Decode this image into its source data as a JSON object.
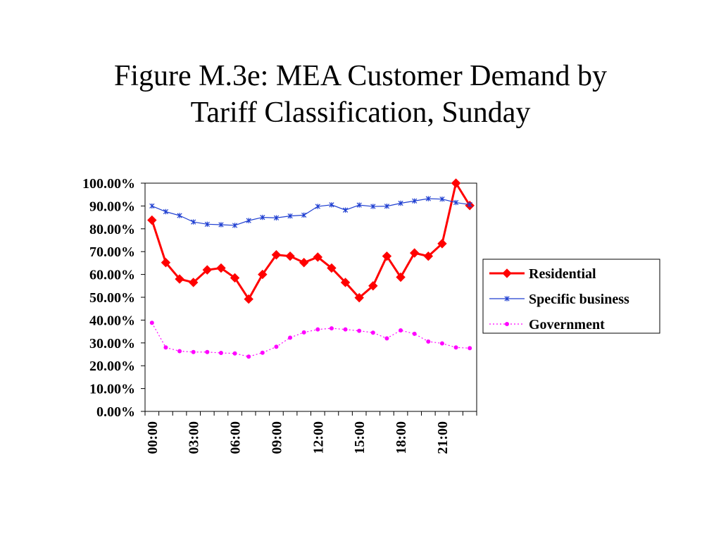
{
  "title_lines": [
    "Figure M.3e: MEA Customer Demand by",
    "Tariff Classification, Sunday"
  ],
  "chart_data": {
    "type": "line",
    "title": "Figure M.3e: MEA Customer Demand by Tariff Classification, Sunday",
    "xlabel": "",
    "ylabel": "",
    "x": [
      "00:00",
      "01:00",
      "02:00",
      "03:00",
      "04:00",
      "05:00",
      "06:00",
      "07:00",
      "08:00",
      "09:00",
      "10:00",
      "11:00",
      "12:00",
      "13:00",
      "14:00",
      "15:00",
      "16:00",
      "17:00",
      "18:00",
      "19:00",
      "20:00",
      "21:00",
      "22:00",
      "23:00"
    ],
    "x_tick_labels": [
      "00:00",
      "03:00",
      "06:00",
      "09:00",
      "12:00",
      "15:00",
      "18:00",
      "21:00"
    ],
    "y_tick_labels": [
      "0.00%",
      "10.00%",
      "20.00%",
      "30.00%",
      "40.00%",
      "50.00%",
      "60.00%",
      "70.00%",
      "80.00%",
      "90.00%",
      "100.00%"
    ],
    "ylim": [
      0,
      100
    ],
    "grid": false,
    "legend_position": "right",
    "series": [
      {
        "name": "Residential",
        "color": "#ff0000",
        "marker": "diamond",
        "line_style": "solid",
        "values": [
          83.8,
          65.2,
          58.0,
          56.5,
          62.0,
          62.8,
          58.5,
          49.2,
          60.0,
          68.6,
          68.0,
          65.2,
          67.6,
          62.8,
          56.5,
          49.8,
          55.0,
          68.0,
          58.8,
          69.4,
          68.0,
          73.5,
          100.0,
          90.2
        ]
      },
      {
        "name": "Specific business",
        "color": "#1f3fd1",
        "marker": "star",
        "line_style": "solid",
        "values": [
          90.0,
          87.5,
          85.8,
          83.0,
          82.0,
          81.8,
          81.5,
          83.6,
          85.0,
          84.8,
          85.6,
          86.0,
          89.8,
          90.5,
          88.2,
          90.4,
          89.8,
          89.9,
          91.2,
          92.2,
          93.2,
          93.0,
          91.5,
          90.6
        ]
      },
      {
        "name": "Government",
        "color": "#ff00ff",
        "marker": "circle",
        "line_style": "dotted",
        "values": [
          38.8,
          28.0,
          26.4,
          26.0,
          26.0,
          25.6,
          25.4,
          24.0,
          25.7,
          28.3,
          32.3,
          34.6,
          35.9,
          36.4,
          35.9,
          35.3,
          34.5,
          32.0,
          35.5,
          34.0,
          30.6,
          29.8,
          28.0,
          27.7
        ]
      }
    ]
  }
}
